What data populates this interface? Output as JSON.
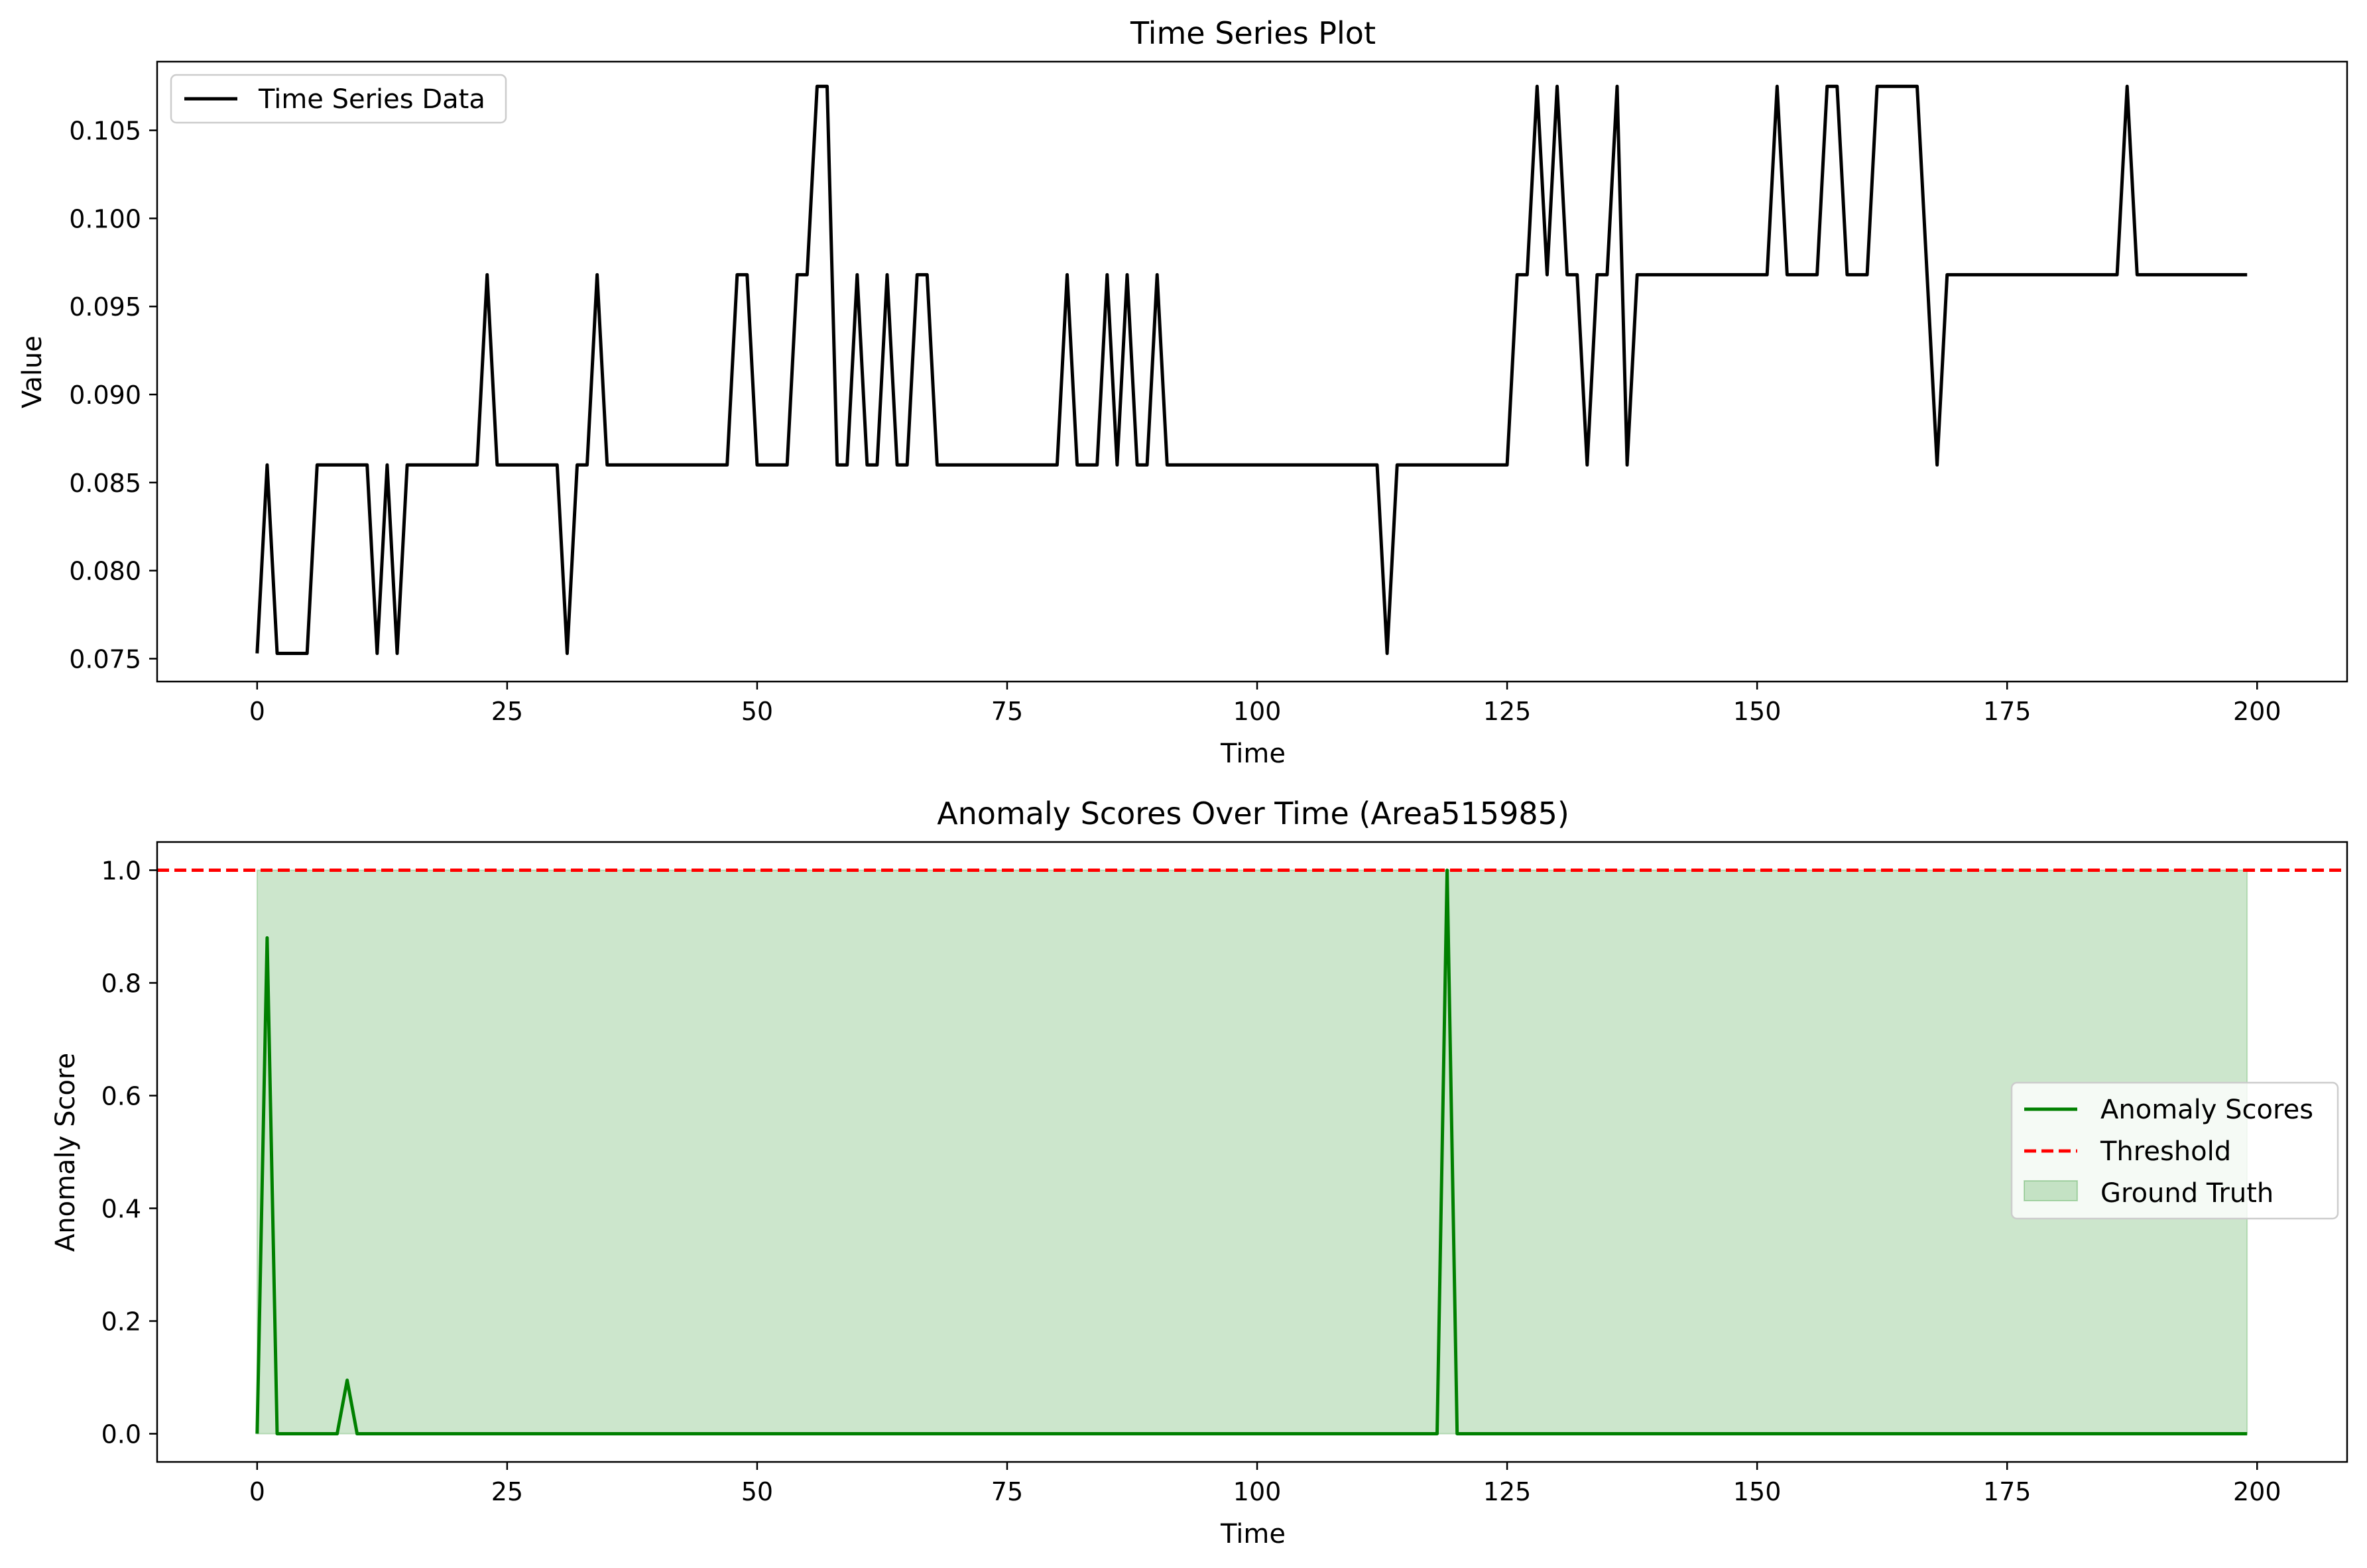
{
  "chart_data": [
    {
      "type": "line",
      "title": "Time Series Plot",
      "xlabel": "Time",
      "ylabel": "Value",
      "xlim": [
        -10,
        209
      ],
      "ylim": [
        0.0737,
        0.1089
      ],
      "xticks": [
        0,
        25,
        50,
        75,
        100,
        125,
        150,
        175,
        200
      ],
      "xtick_labels": [
        "0",
        "25",
        "50",
        "75",
        "100",
        "125",
        "150",
        "175",
        "200"
      ],
      "yticks": [
        0.075,
        0.08,
        0.085,
        0.09,
        0.095,
        0.1,
        0.105
      ],
      "ytick_labels": [
        "0.075",
        "0.080",
        "0.085",
        "0.090",
        "0.095",
        "0.100",
        "0.105"
      ],
      "grid": false,
      "legend_position": "top-left",
      "series": [
        {
          "name": "Time Series Data",
          "color": "#000000",
          "x_start": 0,
          "x_step": 1,
          "y": [
            0.0753,
            0.086,
            0.0753,
            0.0753,
            0.0753,
            0.0753,
            0.086,
            0.086,
            0.086,
            0.086,
            0.086,
            0.086,
            0.0753,
            0.086,
            0.0753,
            0.086,
            0.086,
            0.086,
            0.086,
            0.086,
            0.086,
            0.086,
            0.086,
            0.0968,
            0.086,
            0.086,
            0.086,
            0.086,
            0.086,
            0.086,
            0.086,
            0.0753,
            0.086,
            0.086,
            0.0968,
            0.086,
            0.086,
            0.086,
            0.086,
            0.086,
            0.086,
            0.086,
            0.086,
            0.086,
            0.086,
            0.086,
            0.086,
            0.086,
            0.0968,
            0.0968,
            0.086,
            0.086,
            0.086,
            0.086,
            0.0968,
            0.0968,
            0.1075,
            0.1075,
            0.086,
            0.086,
            0.0968,
            0.086,
            0.086,
            0.0968,
            0.086,
            0.086,
            0.0968,
            0.0968,
            0.086,
            0.086,
            0.086,
            0.086,
            0.086,
            0.086,
            0.086,
            0.086,
            0.086,
            0.086,
            0.086,
            0.086,
            0.086,
            0.0968,
            0.086,
            0.086,
            0.086,
            0.0968,
            0.086,
            0.0968,
            0.086,
            0.086,
            0.0968,
            0.086,
            0.086,
            0.086,
            0.086,
            0.086,
            0.086,
            0.086,
            0.086,
            0.086,
            0.086,
            0.086,
            0.086,
            0.086,
            0.086,
            0.086,
            0.086,
            0.086,
            0.086,
            0.086,
            0.086,
            0.086,
            0.086,
            0.0753,
            0.086,
            0.086,
            0.086,
            0.086,
            0.086,
            0.086,
            0.086,
            0.086,
            0.086,
            0.086,
            0.086,
            0.086,
            0.0968,
            0.0968,
            0.1075,
            0.0968,
            0.1075,
            0.0968,
            0.0968,
            0.086,
            0.0968,
            0.0968,
            0.1075,
            0.086,
            0.0968,
            0.0968,
            0.0968,
            0.0968,
            0.0968,
            0.0968,
            0.0968,
            0.0968,
            0.0968,
            0.0968,
            0.0968,
            0.0968,
            0.0968,
            0.0968,
            0.1075,
            0.0968,
            0.0968,
            0.0968,
            0.0968,
            0.1075,
            0.1075,
            0.0968,
            0.0968,
            0.0968,
            0.1075,
            0.1075,
            0.1075,
            0.1075,
            0.1075,
            0.0968,
            0.086,
            0.0968,
            0.0968,
            0.0968,
            0.0968,
            0.0968,
            0.0968,
            0.0968,
            0.0968,
            0.0968,
            0.0968,
            0.0968,
            0.0968,
            0.0968,
            0.0968,
            0.0968,
            0.0968,
            0.0968,
            0.0968,
            0.1075,
            0.0968,
            0.0968,
            0.0968,
            0.0968,
            0.0968,
            0.0968,
            0.0968,
            0.0968,
            0.0968,
            0.0968,
            0.0968,
            0.0968
          ]
        }
      ]
    },
    {
      "type": "line",
      "title": "Anomaly Scores Over Time (Area515985)",
      "xlabel": "Time",
      "ylabel": "Anomaly Score",
      "xlim": [
        -10,
        209
      ],
      "ylim": [
        -0.05,
        1.05
      ],
      "xticks": [
        0,
        25,
        50,
        75,
        100,
        125,
        150,
        175,
        200
      ],
      "xtick_labels": [
        "0",
        "25",
        "50",
        "75",
        "100",
        "125",
        "150",
        "175",
        "200"
      ],
      "yticks": [
        0.0,
        0.2,
        0.4,
        0.6,
        0.8,
        1.0
      ],
      "ytick_labels": [
        "0.0",
        "0.2",
        "0.4",
        "0.6",
        "0.8",
        "1.0"
      ],
      "grid": false,
      "legend_position": "center-right",
      "threshold": {
        "name": "Threshold",
        "value": 1.0,
        "color": "#ff0000"
      },
      "ground_truth": {
        "name": "Ground Truth",
        "x_range": [
          0,
          199
        ],
        "y_range": [
          0,
          1
        ],
        "color": "#008000",
        "opacity": 0.2
      },
      "series": [
        {
          "name": "Anomaly Scores",
          "color": "#008000",
          "x": [
            0,
            1,
            2,
            8,
            9,
            10,
            118,
            119,
            120,
            199
          ],
          "y": [
            0,
            0.88,
            0,
            0,
            0.095,
            0,
            0,
            1.0,
            0,
            0
          ]
        }
      ]
    }
  ]
}
